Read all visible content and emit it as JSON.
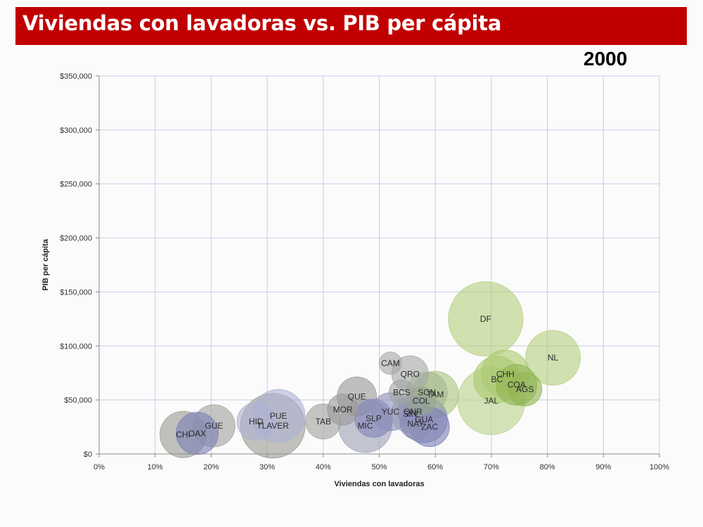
{
  "header": {
    "title": "Viviendas con lavadoras vs. PIB per cápita",
    "year": "2000"
  },
  "colors": {
    "title_bg": "#c00000",
    "title_fg": "#ffffff"
  },
  "chart_data": {
    "type": "bubble",
    "xlabel": "Viviendas con lavadoras",
    "ylabel": "PIB per cápita",
    "xlim": [
      0,
      1
    ],
    "ylim": [
      0,
      350000
    ],
    "xticks": [
      0,
      0.1,
      0.2,
      0.3,
      0.4,
      0.5,
      0.6,
      0.7,
      0.8,
      0.9,
      1.0
    ],
    "xtick_labels": [
      "0%",
      "10%",
      "20%",
      "30%",
      "40%",
      "50%",
      "60%",
      "70%",
      "80%",
      "90%",
      "100%"
    ],
    "yticks": [
      0,
      50000,
      100000,
      150000,
      200000,
      250000,
      300000,
      350000
    ],
    "ytick_labels": [
      "$0",
      "$50,000",
      "$100,000",
      "$150,000",
      "$200,000",
      "$250,000",
      "$300,000",
      "$350,000"
    ],
    "grid": true,
    "points": [
      {
        "label": "DF",
        "x": 0.69,
        "y": 125000,
        "r": 53,
        "color": "#b5cf80"
      },
      {
        "label": "NL",
        "x": 0.81,
        "y": 89000,
        "r": 39,
        "color": "#b5cf80"
      },
      {
        "label": "CHH",
        "x": 0.725,
        "y": 74000,
        "r": 34,
        "color": "#a9c96f"
      },
      {
        "label": "BC",
        "x": 0.71,
        "y": 69000,
        "r": 33,
        "color": "#a9c96f"
      },
      {
        "label": "COA",
        "x": 0.745,
        "y": 64000,
        "r": 29,
        "color": "#8fb452"
      },
      {
        "label": "AGS",
        "x": 0.76,
        "y": 60000,
        "r": 24,
        "color": "#8fb452"
      },
      {
        "label": "JAL",
        "x": 0.7,
        "y": 49000,
        "r": 48,
        "color": "#bcd48c"
      },
      {
        "label": "TAM",
        "x": 0.6,
        "y": 55000,
        "r": 33,
        "color": "#a9c680"
      },
      {
        "label": "SON",
        "x": 0.585,
        "y": 57000,
        "r": 29,
        "color": "#a4b891"
      },
      {
        "label": "COL",
        "x": 0.575,
        "y": 49000,
        "r": 20,
        "color": "#95a690"
      },
      {
        "label": "BCS",
        "x": 0.54,
        "y": 57000,
        "r": 18,
        "color": "#9fa5a0"
      },
      {
        "label": "QRO",
        "x": 0.555,
        "y": 74000,
        "r": 26,
        "color": "#a6a9a6"
      },
      {
        "label": "CAM",
        "x": 0.52,
        "y": 84000,
        "r": 16,
        "color": "#a6a9a6"
      },
      {
        "label": "QUE",
        "x": 0.46,
        "y": 53000,
        "r": 28,
        "color": "#9a9a98"
      },
      {
        "label": "MOR",
        "x": 0.435,
        "y": 41000,
        "r": 22,
        "color": "#9a9a98"
      },
      {
        "label": "SLP",
        "x": 0.49,
        "y": 33000,
        "r": 27,
        "color": "#8285b8"
      },
      {
        "label": "YUC",
        "x": 0.52,
        "y": 39000,
        "r": 27,
        "color": "#8e8fb8"
      },
      {
        "label": "QNR",
        "x": 0.56,
        "y": 39000,
        "r": 22,
        "color": "#8e8fb8"
      },
      {
        "label": "SIN",
        "x": 0.555,
        "y": 37000,
        "r": 27,
        "color": "#9a9fb5"
      },
      {
        "label": "GUA",
        "x": 0.58,
        "y": 32000,
        "r": 33,
        "color": "#8a8cb8"
      },
      {
        "label": "NAY",
        "x": 0.565,
        "y": 28000,
        "r": 22,
        "color": "#8a8cb8"
      },
      {
        "label": "ZAC",
        "x": 0.59,
        "y": 25000,
        "r": 28,
        "color": "#7b7fb4"
      },
      {
        "label": "MIC",
        "x": 0.475,
        "y": 26000,
        "r": 38,
        "color": "#9ea1b8"
      },
      {
        "label": "TAB",
        "x": 0.4,
        "y": 30000,
        "r": 25,
        "color": "#a2a39e"
      },
      {
        "label": "PUE",
        "x": 0.32,
        "y": 35000,
        "r": 38,
        "color": "#aeb1d3"
      },
      {
        "label": "TLAVER",
        "x": 0.31,
        "y": 26000,
        "r": 46,
        "color": "#9d9c95"
      },
      {
        "label": "HID",
        "x": 0.28,
        "y": 30000,
        "r": 27,
        "color": "#aeb1d3"
      },
      {
        "label": "GUE",
        "x": 0.205,
        "y": 26000,
        "r": 30,
        "color": "#a2a39e"
      },
      {
        "label": "OAX",
        "x": 0.175,
        "y": 19000,
        "r": 30,
        "color": "#7b7fb4"
      },
      {
        "label": "CHI",
        "x": 0.15,
        "y": 18000,
        "r": 33,
        "color": "#9d9c95"
      }
    ]
  }
}
